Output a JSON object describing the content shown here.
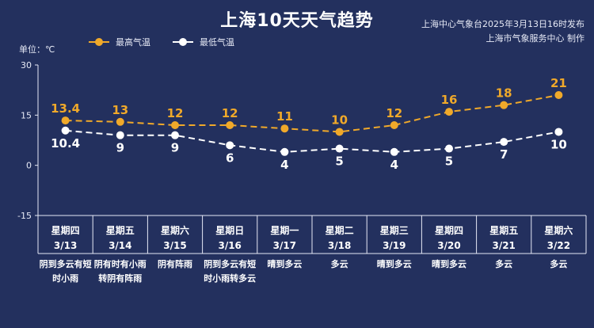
{
  "header": {
    "title": "上海10天天气趋势",
    "issuer_line1": "上海中心气象台2025年3月13日16时发布",
    "issuer_line2": "上海市气象服务中心 制作"
  },
  "colors": {
    "background": "#23305e",
    "high": "#f0a92a",
    "low": "#ffffff",
    "axis": "#e6e9f5"
  },
  "chart_data": {
    "type": "line",
    "ylabel": "单位：℃",
    "ylim": [
      -15,
      30
    ],
    "yticks": [
      30,
      15,
      0,
      -15
    ],
    "grid": false,
    "legend_position": "top-left",
    "days": [
      {
        "weekday": "星期四",
        "date": "3/13",
        "weather": "阴到多云有短时小雨"
      },
      {
        "weekday": "星期五",
        "date": "3/14",
        "weather": "阴有时有小雨转阴有阵雨"
      },
      {
        "weekday": "星期六",
        "date": "3/15",
        "weather": "阴有阵雨"
      },
      {
        "weekday": "星期日",
        "date": "3/16",
        "weather": "阴到多云有短时小雨转多云"
      },
      {
        "weekday": "星期一",
        "date": "3/17",
        "weather": "晴到多云"
      },
      {
        "weekday": "星期二",
        "date": "3/18",
        "weather": "多云"
      },
      {
        "weekday": "星期三",
        "date": "3/19",
        "weather": "晴到多云"
      },
      {
        "weekday": "星期四",
        "date": "3/20",
        "weather": "晴到多云"
      },
      {
        "weekday": "星期五",
        "date": "3/21",
        "weather": "多云"
      },
      {
        "weekday": "星期六",
        "date": "3/22",
        "weather": "多云"
      }
    ],
    "series": [
      {
        "name": "最高气温",
        "labels": [
          "13.4",
          "13",
          "12",
          "12",
          "11",
          "10",
          "12",
          "16",
          "18",
          "21"
        ],
        "values": [
          13.4,
          13,
          12,
          12,
          11,
          10,
          12,
          16,
          18,
          21
        ]
      },
      {
        "name": "最低气温",
        "labels": [
          "10.4",
          "9",
          "9",
          "6",
          "4",
          "5",
          "4",
          "5",
          "7",
          "10"
        ],
        "values": [
          10.4,
          9,
          9,
          6,
          4,
          5,
          4,
          5,
          7,
          10
        ]
      }
    ]
  }
}
